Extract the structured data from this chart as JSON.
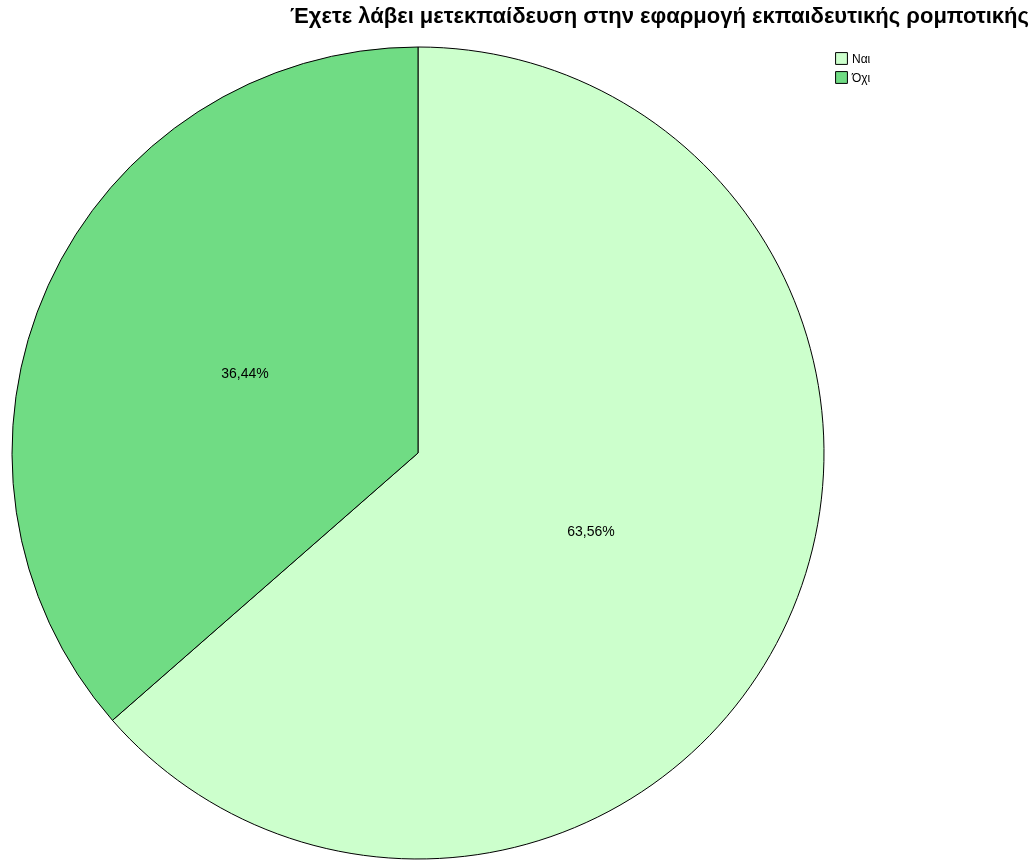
{
  "chart_data": {
    "type": "pie",
    "title": "Έχετε λάβει μετεκπαίδευση στην εφαρμογή εκπαιδευτικής ρομποτικής",
    "categories": [
      "Ναι",
      "Όχι"
    ],
    "values": [
      63.56,
      36.44
    ],
    "colors": [
      "#ccffcc",
      "#70dc84"
    ],
    "value_labels": [
      "63,56%",
      "36,44%"
    ],
    "legend": "top right"
  }
}
